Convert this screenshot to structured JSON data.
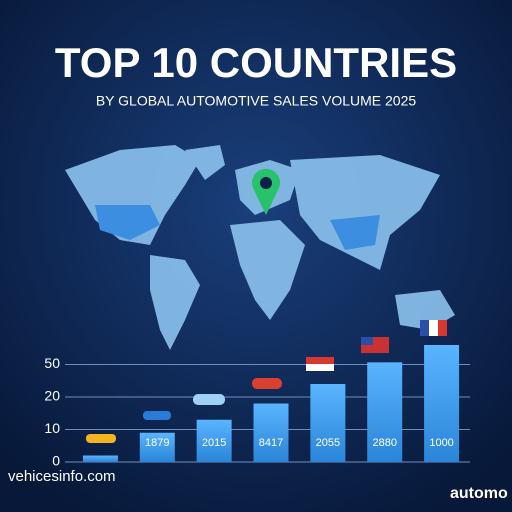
{
  "chart_data": {
    "type": "bar",
    "title": "TOP 10 COUNTRIES",
    "subtitle": "BY GLOBAL AUTOMOTIVE SALES VOLUME 2025",
    "categories": [
      null,
      "1879",
      "2015",
      "8417",
      "2055",
      "2880",
      "1000"
    ],
    "values": [
      2,
      9,
      13,
      18,
      32,
      52,
      68
    ],
    "color": "#3d9ff0",
    "ylim": [
      0,
      70
    ],
    "yticks": [
      0,
      10,
      20,
      50
    ],
    "grid": true,
    "source": "vehicesinfo.com",
    "brand": "automo"
  }
}
